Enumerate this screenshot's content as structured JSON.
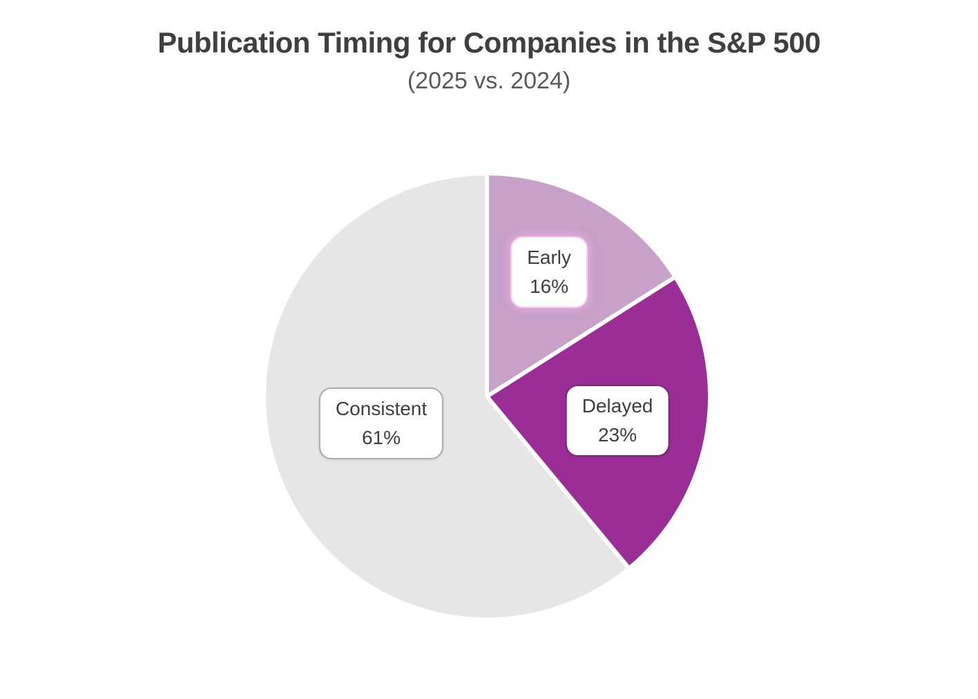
{
  "page": {
    "background_color": "#FFFFFF"
  },
  "chart_data": {
    "type": "pie",
    "title": "Publication Timing for Companies in the S&P 500",
    "subtitle": "(2025 vs. 2024)",
    "unit": "%",
    "start_angle_deg": 0,
    "direction": "clockwise",
    "legend_position": "none",
    "separator_color": "#FFFFFF",
    "label_text_color": "#3F3F3F",
    "title_color": "#3F3F3F",
    "subtitle_color": "#595959",
    "slices": [
      {
        "label": "Early",
        "value": 16,
        "display": "16%",
        "color": "#C7A1C7",
        "label_border": "#F5CBF0"
      },
      {
        "label": "Delayed",
        "value": 23,
        "display": "23%",
        "color": "#9B2E96",
        "label_border": "#7C2478"
      },
      {
        "label": "Consistent",
        "value": 61,
        "display": "61%",
        "color": "#E7E6E7",
        "label_border": "#ACACAC"
      }
    ]
  }
}
